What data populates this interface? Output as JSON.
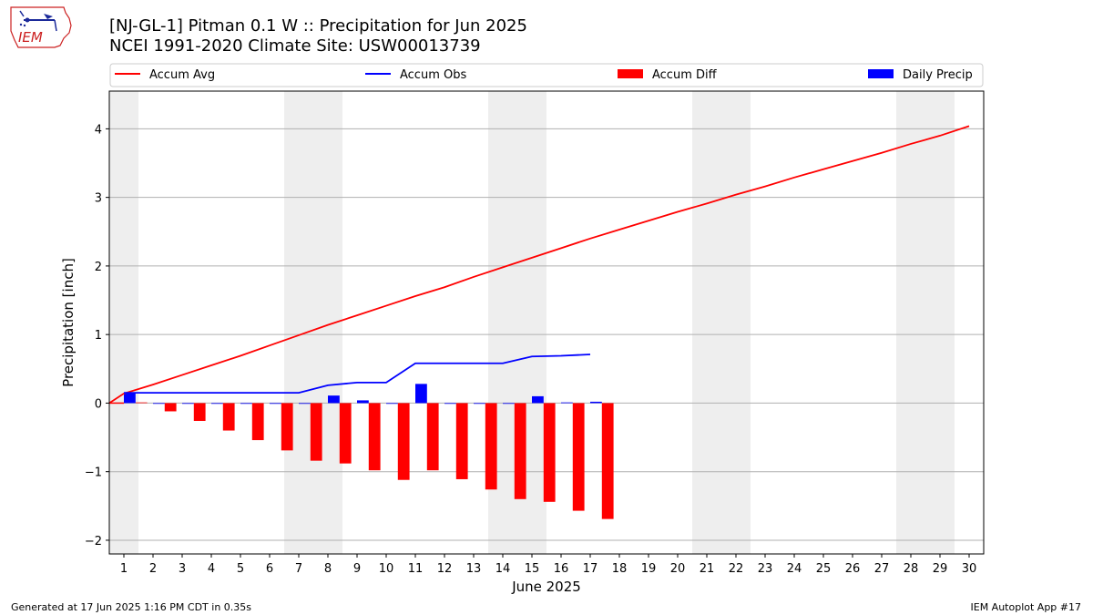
{
  "header": {
    "title_line1": "[NJ-GL-1] Pitman 0.1 W :: Precipitation for Jun 2025",
    "title_line2": "NCEI 1991-2020 Climate Site: USW00013739",
    "logo_text": "IEM"
  },
  "footer": {
    "generated": "Generated at 17 Jun 2025 1:16 PM CDT in 0.35s",
    "app": "IEM Autoplot App #17"
  },
  "colors": {
    "avg": "#ff0000",
    "obs": "#0000ff",
    "diff": "#ff0000",
    "daily": "#0000ff",
    "weekend": "#eeeeee",
    "grid": "#b0b0b0"
  },
  "chart_data": {
    "type": "bar",
    "xlabel": "June 2025",
    "ylabel": "Precipitation [inch]",
    "xlim": [
      0.5,
      30.5
    ],
    "ylim": [
      -2.2,
      4.55
    ],
    "yticks": [
      -2,
      -1,
      0,
      1,
      2,
      3,
      4
    ],
    "ytick_labels": [
      "−2",
      "−1",
      "0",
      "1",
      "2",
      "3",
      "4"
    ],
    "days": [
      1,
      2,
      3,
      4,
      5,
      6,
      7,
      8,
      9,
      10,
      11,
      12,
      13,
      14,
      15,
      16,
      17,
      18,
      19,
      20,
      21,
      22,
      23,
      24,
      25,
      26,
      27,
      28,
      29,
      30
    ],
    "weekend_spans": [
      [
        0.5,
        1.5
      ],
      [
        6.5,
        8.5
      ],
      [
        13.5,
        15.5
      ],
      [
        20.5,
        22.5
      ],
      [
        27.5,
        29.5
      ]
    ],
    "grid": true,
    "legend": {
      "position": "top",
      "entries": [
        {
          "label": "Accum Avg",
          "kind": "line",
          "color": "#ff0000"
        },
        {
          "label": "Accum Obs",
          "kind": "line",
          "color": "#0000ff"
        },
        {
          "label": "Accum Diff",
          "kind": "bar",
          "color": "#ff0000"
        },
        {
          "label": "Daily Precip",
          "kind": "bar",
          "color": "#0000ff"
        }
      ]
    },
    "series": [
      {
        "name": "Accum Avg",
        "type": "line",
        "x": [
          1,
          2,
          3,
          4,
          5,
          6,
          7,
          8,
          9,
          10,
          11,
          12,
          13,
          14,
          15,
          16,
          17,
          18,
          19,
          20,
          21,
          22,
          23,
          24,
          25,
          26,
          27,
          28,
          29,
          30
        ],
        "values": [
          0.14,
          0.27,
          0.41,
          0.55,
          0.69,
          0.84,
          0.99,
          1.14,
          1.28,
          1.42,
          1.56,
          1.69,
          1.84,
          1.98,
          2.12,
          2.26,
          2.4,
          2.53,
          2.66,
          2.79,
          2.91,
          3.04,
          3.16,
          3.29,
          3.41,
          3.53,
          3.65,
          3.78,
          3.9,
          4.04
        ]
      },
      {
        "name": "Accum Obs",
        "type": "line",
        "x": [
          1,
          2,
          3,
          4,
          5,
          6,
          7,
          8,
          9,
          10,
          11,
          12,
          13,
          14,
          15,
          16,
          17
        ],
        "values": [
          0.15,
          0.15,
          0.15,
          0.15,
          0.15,
          0.15,
          0.15,
          0.26,
          0.3,
          0.3,
          0.58,
          0.58,
          0.58,
          0.58,
          0.68,
          0.69,
          0.71
        ]
      },
      {
        "name": "Accum Diff",
        "type": "bar",
        "x": [
          1,
          2,
          3,
          4,
          5,
          6,
          7,
          8,
          9,
          10,
          11,
          12,
          13,
          14,
          15,
          16,
          17
        ],
        "values": [
          0.01,
          -0.12,
          -0.26,
          -0.4,
          -0.54,
          -0.69,
          -0.84,
          -0.88,
          -0.98,
          -1.12,
          -0.98,
          -1.11,
          -1.26,
          -1.4,
          -1.44,
          -1.57,
          -1.69
        ]
      },
      {
        "name": "Daily Precip",
        "type": "bar",
        "x": [
          1,
          2,
          3,
          4,
          5,
          6,
          7,
          8,
          9,
          10,
          11,
          12,
          13,
          14,
          15,
          16,
          17
        ],
        "values": [
          0.15,
          0,
          0,
          0,
          0,
          0,
          0,
          0.11,
          0.04,
          0,
          0.28,
          0,
          0,
          0,
          0.1,
          0.01,
          0.02
        ]
      }
    ]
  }
}
